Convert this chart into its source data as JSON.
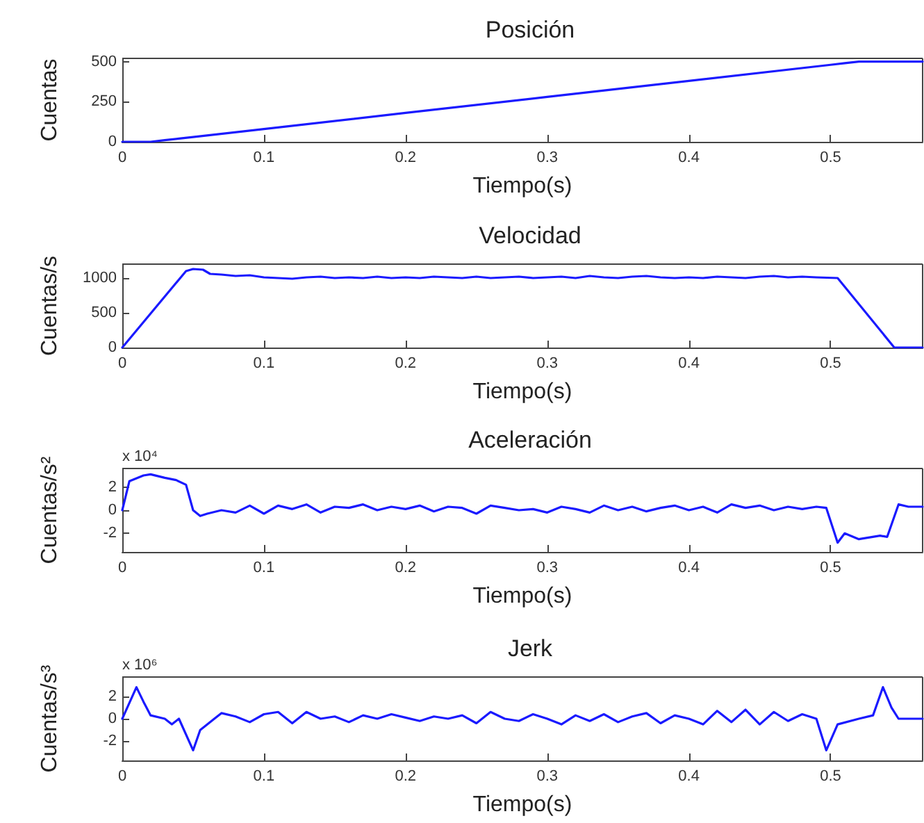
{
  "chart_data": [
    {
      "type": "line",
      "title": "Posición",
      "xlabel": "Tiempo(s)",
      "ylabel": "Cuentas",
      "marker": "none",
      "x": [
        0,
        0.01,
        0.02,
        0.03,
        0.04,
        0.05,
        0.1,
        0.2,
        0.3,
        0.4,
        0.5,
        0.51,
        0.52,
        0.53,
        0.54,
        0.55,
        0.565
      ],
      "series": [
        {
          "color": "#1a1aff",
          "values": [
            0,
            0,
            0,
            10,
            20,
            30,
            80,
            180,
            280,
            380,
            480,
            490,
            500,
            500,
            500,
            500,
            500
          ]
        }
      ],
      "xlim": [
        0,
        0.565
      ],
      "xticks": [
        0,
        0.1,
        0.2,
        0.3,
        0.4,
        0.5
      ],
      "ylim": [
        0,
        520
      ],
      "yticks": [
        0,
        250,
        500
      ]
    },
    {
      "type": "line",
      "title": "Velocidad",
      "xlabel": "Tiempo(s)",
      "ylabel": "Cuentas/s",
      "marker": "none",
      "x": [
        0,
        0.045,
        0.05,
        0.057,
        0.062,
        0.07,
        0.08,
        0.09,
        0.1,
        0.11,
        0.12,
        0.13,
        0.14,
        0.15,
        0.16,
        0.17,
        0.18,
        0.19,
        0.2,
        0.21,
        0.22,
        0.23,
        0.24,
        0.25,
        0.26,
        0.27,
        0.28,
        0.29,
        0.3,
        0.31,
        0.32,
        0.33,
        0.34,
        0.35,
        0.36,
        0.37,
        0.38,
        0.39,
        0.4,
        0.41,
        0.42,
        0.43,
        0.44,
        0.45,
        0.46,
        0.47,
        0.48,
        0.49,
        0.505,
        0.545,
        0.565
      ],
      "series": [
        {
          "color": "#1a1aff",
          "values": [
            0,
            1100,
            1130,
            1120,
            1060,
            1050,
            1030,
            1040,
            1010,
            1000,
            990,
            1010,
            1020,
            1000,
            1010,
            1000,
            1020,
            1000,
            1010,
            1000,
            1020,
            1010,
            1000,
            1020,
            1000,
            1010,
            1020,
            1000,
            1010,
            1020,
            1000,
            1030,
            1010,
            1000,
            1020,
            1030,
            1010,
            1000,
            1010,
            1000,
            1020,
            1010,
            1000,
            1020,
            1030,
            1010,
            1020,
            1010,
            1000,
            0,
            0
          ]
        }
      ],
      "xlim": [
        0,
        0.565
      ],
      "xticks": [
        0,
        0.1,
        0.2,
        0.3,
        0.4,
        0.5
      ],
      "ylim": [
        0,
        1200
      ],
      "yticks": [
        0,
        500,
        1000
      ]
    },
    {
      "type": "line",
      "title": "Aceleración",
      "xlabel": "Tiempo(s)",
      "ylabel": "Cuentas/s²",
      "marker": "none",
      "annotations": [
        "x 10⁴"
      ],
      "x": [
        0,
        0.005,
        0.015,
        0.02,
        0.03,
        0.038,
        0.045,
        0.05,
        0.055,
        0.06,
        0.07,
        0.08,
        0.09,
        0.1,
        0.11,
        0.12,
        0.13,
        0.14,
        0.15,
        0.16,
        0.17,
        0.18,
        0.19,
        0.2,
        0.21,
        0.22,
        0.23,
        0.24,
        0.25,
        0.26,
        0.27,
        0.28,
        0.29,
        0.3,
        0.31,
        0.32,
        0.33,
        0.34,
        0.35,
        0.36,
        0.37,
        0.38,
        0.39,
        0.4,
        0.41,
        0.42,
        0.43,
        0.44,
        0.45,
        0.46,
        0.47,
        0.48,
        0.49,
        0.497,
        0.505,
        0.51,
        0.52,
        0.535,
        0.54,
        0.548,
        0.555,
        0.565
      ],
      "series": [
        {
          "color": "#1a1aff",
          "values": [
            0,
            2.5,
            3,
            3.1,
            2.8,
            2.6,
            2.2,
            0,
            -0.5,
            -0.3,
            0,
            -0.2,
            0.4,
            -0.3,
            0.4,
            0.1,
            0.5,
            -0.2,
            0.3,
            0.2,
            0.5,
            0,
            0.3,
            0.1,
            0.4,
            -0.1,
            0.3,
            0.2,
            -0.3,
            0.4,
            0.2,
            0,
            0.1,
            -0.2,
            0.3,
            0.1,
            -0.2,
            0.4,
            0,
            0.3,
            -0.1,
            0.2,
            0.4,
            0,
            0.3,
            -0.2,
            0.5,
            0.2,
            0.4,
            0,
            0.3,
            0.1,
            0.3,
            0.2,
            -2.8,
            -2,
            -2.5,
            -2.2,
            -2.3,
            0.5,
            0.3,
            0.3
          ]
        }
      ],
      "xlim": [
        0,
        0.565
      ],
      "xticks": [
        0,
        0.1,
        0.2,
        0.3,
        0.4,
        0.5
      ],
      "ylim": [
        -3.6,
        3.6
      ],
      "yticks": [
        -2,
        0,
        2
      ]
    },
    {
      "type": "line",
      "title": "Jerk",
      "xlabel": "Tiempo(s)",
      "ylabel": "Cuentas/s³",
      "marker": "none",
      "annotations": [
        "x 10⁶"
      ],
      "x": [
        0,
        0.01,
        0.015,
        0.02,
        0.03,
        0.035,
        0.04,
        0.05,
        0.055,
        0.065,
        0.07,
        0.08,
        0.09,
        0.1,
        0.11,
        0.12,
        0.13,
        0.14,
        0.15,
        0.16,
        0.17,
        0.18,
        0.19,
        0.2,
        0.21,
        0.22,
        0.23,
        0.24,
        0.25,
        0.26,
        0.27,
        0.28,
        0.29,
        0.3,
        0.31,
        0.32,
        0.33,
        0.34,
        0.35,
        0.36,
        0.37,
        0.38,
        0.39,
        0.4,
        0.41,
        0.42,
        0.43,
        0.44,
        0.45,
        0.46,
        0.47,
        0.48,
        0.49,
        0.497,
        0.505,
        0.52,
        0.53,
        0.537,
        0.543,
        0.548,
        0.565
      ],
      "series": [
        {
          "color": "#1a1aff",
          "values": [
            0,
            2.8,
            1.5,
            0.3,
            0,
            -0.5,
            0,
            -2.8,
            -1,
            0,
            0.5,
            0.2,
            -0.3,
            0.4,
            0.6,
            -0.4,
            0.6,
            0,
            0.2,
            -0.3,
            0.3,
            0,
            0.4,
            0.1,
            -0.2,
            0.2,
            0,
            0.3,
            -0.4,
            0.6,
            0,
            -0.2,
            0.4,
            0,
            -0.5,
            0.3,
            -0.2,
            0.4,
            -0.3,
            0.2,
            0.5,
            -0.4,
            0.3,
            0,
            -0.5,
            0.7,
            -0.3,
            0.8,
            -0.5,
            0.6,
            -0.2,
            0.4,
            0,
            -2.8,
            -0.5,
            0,
            0.3,
            2.8,
            1,
            0,
            0
          ]
        }
      ],
      "xlim": [
        0,
        0.565
      ],
      "xticks": [
        0,
        0.1,
        0.2,
        0.3,
        0.4,
        0.5
      ],
      "ylim": [
        -3.7,
        3.7
      ],
      "yticks": [
        -2,
        0,
        2
      ]
    }
  ]
}
